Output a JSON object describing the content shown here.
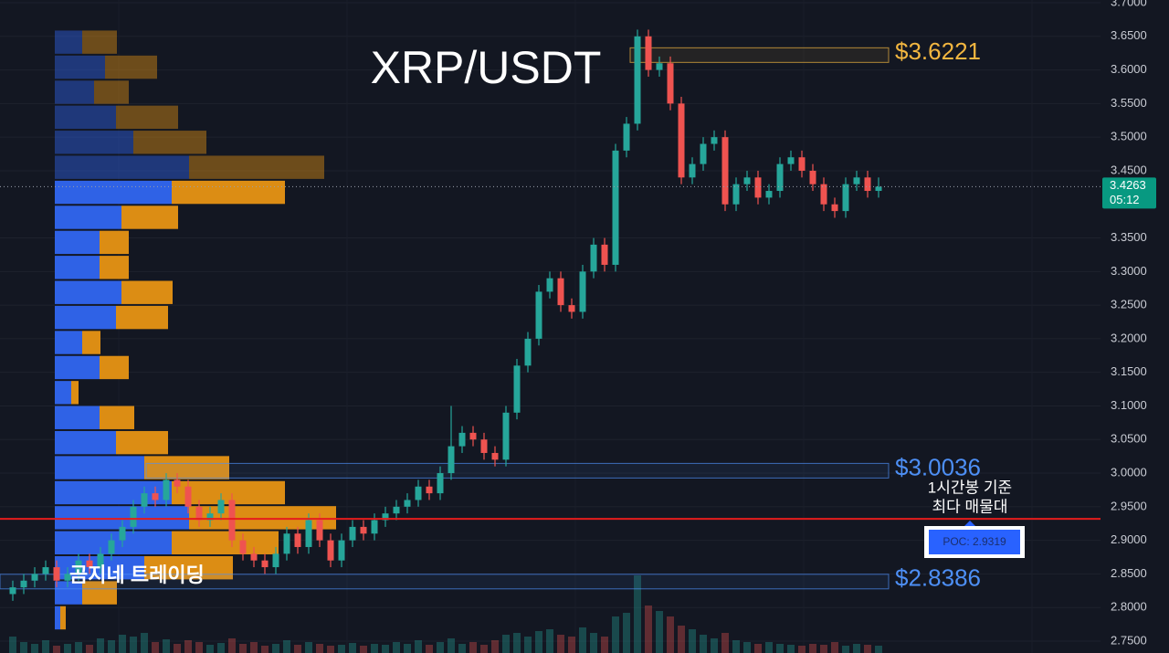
{
  "chart_data": {
    "type": "candlestick",
    "title": "XRP/USDT",
    "watermark": "곰지네 트레이딩",
    "up_color": "#26a69a",
    "down_color": "#ef5350",
    "grid": true,
    "ylim": [
      2.7323,
      3.7041
    ],
    "yticks": [
      {
        "value": 2.75,
        "label": "2.7500"
      },
      {
        "value": 2.8,
        "label": "2.8000"
      },
      {
        "value": 2.85,
        "label": "2.8500"
      },
      {
        "value": 2.9,
        "label": "2.9000"
      },
      {
        "value": 2.95,
        "label": "2.9500"
      },
      {
        "value": 3.0,
        "label": "3.0000"
      },
      {
        "value": 3.05,
        "label": "3.0500"
      },
      {
        "value": 3.1,
        "label": "3.1000"
      },
      {
        "value": 3.15,
        "label": "3.1500"
      },
      {
        "value": 3.2,
        "label": "3.2000"
      },
      {
        "value": 3.25,
        "label": "3.2500"
      },
      {
        "value": 3.3,
        "label": "3.3000"
      },
      {
        "value": 3.35,
        "label": "3.3500"
      },
      {
        "value": 3.45,
        "label": "3.4500"
      },
      {
        "value": 3.5,
        "label": "3.5000"
      },
      {
        "value": 3.55,
        "label": "3.5500"
      },
      {
        "value": 3.6,
        "label": "3.6000"
      },
      {
        "value": 3.65,
        "label": "3.6500"
      },
      {
        "value": 3.7,
        "label": "3.7000"
      }
    ],
    "open": [
      2.82,
      2.83,
      2.84,
      2.85,
      2.86,
      2.84,
      2.85,
      2.87,
      2.86,
      2.88,
      2.9,
      2.92,
      2.95,
      2.97,
      2.96,
      2.99,
      2.98,
      2.95,
      2.93,
      2.94,
      2.96,
      2.9,
      2.88,
      2.87,
      2.86,
      2.88,
      2.91,
      2.89,
      2.93,
      2.9,
      2.87,
      2.9,
      2.92,
      2.91,
      2.93,
      2.94,
      2.95,
      2.96,
      2.98,
      2.97,
      3.0,
      3.04,
      3.06,
      3.05,
      3.03,
      3.02,
      3.09,
      3.16,
      3.2,
      3.27,
      3.29,
      3.25,
      3.24,
      3.3,
      3.34,
      3.31,
      3.48,
      3.52,
      3.65,
      3.6,
      3.61,
      3.55,
      3.44,
      3.46,
      3.49,
      3.5,
      3.4,
      3.43,
      3.44,
      3.41,
      3.42,
      3.46,
      3.47,
      3.45,
      3.43,
      3.4,
      3.39,
      3.43,
      3.44,
      3.42
    ],
    "high": [
      2.84,
      2.85,
      2.86,
      2.87,
      2.87,
      2.86,
      2.88,
      2.88,
      2.89,
      2.91,
      2.93,
      2.96,
      2.98,
      2.98,
      3.0,
      3.0,
      2.99,
      2.96,
      2.95,
      2.97,
      2.97,
      2.91,
      2.89,
      2.88,
      2.89,
      2.92,
      2.92,
      2.94,
      2.94,
      2.91,
      2.91,
      2.93,
      2.93,
      2.94,
      2.95,
      2.96,
      2.97,
      2.99,
      2.99,
      3.01,
      3.1,
      3.07,
      3.07,
      3.06,
      3.04,
      3.1,
      3.17,
      3.21,
      3.28,
      3.3,
      3.3,
      3.26,
      3.31,
      3.35,
      3.35,
      3.49,
      3.53,
      3.66,
      3.66,
      3.62,
      3.62,
      3.56,
      3.47,
      3.5,
      3.51,
      3.51,
      3.44,
      3.45,
      3.45,
      3.43,
      3.47,
      3.48,
      3.48,
      3.46,
      3.44,
      3.41,
      3.44,
      3.45,
      3.45,
      3.44
    ],
    "low": [
      2.81,
      2.82,
      2.83,
      2.84,
      2.83,
      2.83,
      2.84,
      2.85,
      2.85,
      2.87,
      2.89,
      2.91,
      2.94,
      2.95,
      2.95,
      2.97,
      2.94,
      2.92,
      2.92,
      2.93,
      2.89,
      2.87,
      2.86,
      2.85,
      2.85,
      2.87,
      2.88,
      2.88,
      2.89,
      2.86,
      2.86,
      2.89,
      2.9,
      2.9,
      2.92,
      2.93,
      2.94,
      2.95,
      2.96,
      2.96,
      2.99,
      3.03,
      3.04,
      3.02,
      3.01,
      3.01,
      3.08,
      3.15,
      3.19,
      3.26,
      3.24,
      3.23,
      3.23,
      3.29,
      3.3,
      3.3,
      3.47,
      3.51,
      3.59,
      3.59,
      3.54,
      3.43,
      3.43,
      3.45,
      3.48,
      3.39,
      3.39,
      3.42,
      3.4,
      3.4,
      3.41,
      3.45,
      3.44,
      3.42,
      3.39,
      3.38,
      3.38,
      3.42,
      3.41,
      3.41
    ],
    "close": [
      2.83,
      2.84,
      2.85,
      2.86,
      2.84,
      2.85,
      2.87,
      2.86,
      2.88,
      2.9,
      2.92,
      2.95,
      2.97,
      2.96,
      2.99,
      2.98,
      2.95,
      2.93,
      2.94,
      2.96,
      2.9,
      2.88,
      2.87,
      2.86,
      2.88,
      2.91,
      2.89,
      2.93,
      2.9,
      2.87,
      2.9,
      2.92,
      2.91,
      2.93,
      2.94,
      2.95,
      2.96,
      2.98,
      2.97,
      3.0,
      3.04,
      3.06,
      3.05,
      3.03,
      3.02,
      3.09,
      3.16,
      3.2,
      3.27,
      3.29,
      3.25,
      3.24,
      3.3,
      3.34,
      3.31,
      3.48,
      3.52,
      3.65,
      3.6,
      3.61,
      3.55,
      3.44,
      3.46,
      3.49,
      3.5,
      3.4,
      3.43,
      3.44,
      3.41,
      3.42,
      3.46,
      3.47,
      3.45,
      3.43,
      3.4,
      3.39,
      3.43,
      3.44,
      3.42,
      3.4263
    ],
    "volume": [
      18,
      12,
      10,
      14,
      8,
      10,
      12,
      9,
      16,
      14,
      20,
      18,
      22,
      12,
      15,
      10,
      14,
      12,
      9,
      11,
      16,
      10,
      12,
      8,
      10,
      14,
      9,
      12,
      10,
      8,
      9,
      11,
      8,
      10,
      9,
      12,
      10,
      14,
      9,
      12,
      16,
      10,
      12,
      9,
      14,
      20,
      22,
      18,
      24,
      26,
      20,
      18,
      28,
      22,
      18,
      40,
      44,
      85,
      52,
      46,
      40,
      30,
      26,
      20,
      16,
      22,
      14,
      12,
      10,
      12,
      10,
      9,
      8,
      10,
      9,
      12,
      8,
      10,
      9,
      8
    ],
    "last_price": 3.4263,
    "countdown": "05:12",
    "levels": [
      {
        "value": 3.6221,
        "label": "$3.6221",
        "color": "#f2b640"
      },
      {
        "value": 3.0036,
        "label": "$3.0036",
        "color": "#4d8ff5"
      },
      {
        "value": 2.8386,
        "label": "$2.8386",
        "color": "#4d8ff5"
      }
    ],
    "poc": {
      "value": 2.9319,
      "label": "POC: 2.9319",
      "color": "#e51c1c"
    },
    "annotation": [
      "1시간봉 기준",
      "최다 매물대"
    ],
    "volume_profile": {
      "buy_color": "#2f62e6",
      "sell_color": "#dc8d14",
      "bins": [
        3.66,
        3.62275,
        3.5855,
        3.54825,
        3.511,
        3.47375,
        3.4365,
        3.39925,
        3.362,
        3.32475,
        3.2875,
        3.25025,
        3.213,
        3.17575,
        3.1385,
        3.10125,
        3.064,
        3.02675,
        2.9895,
        2.95225,
        2.915,
        2.87775,
        2.8405,
        2.80325,
        2.766
      ],
      "buy": [
        30,
        55,
        43,
        67,
        86,
        147,
        128,
        73,
        49,
        49,
        73,
        67,
        30,
        49,
        18,
        49,
        67,
        98,
        128,
        147,
        128,
        98,
        30,
        6
      ],
      "sell": [
        38,
        57,
        38,
        68,
        80,
        148,
        124,
        62,
        32,
        32,
        56,
        57,
        20,
        32,
        8,
        38,
        57,
        93,
        124,
        161,
        117,
        97,
        38,
        6
      ]
    }
  }
}
